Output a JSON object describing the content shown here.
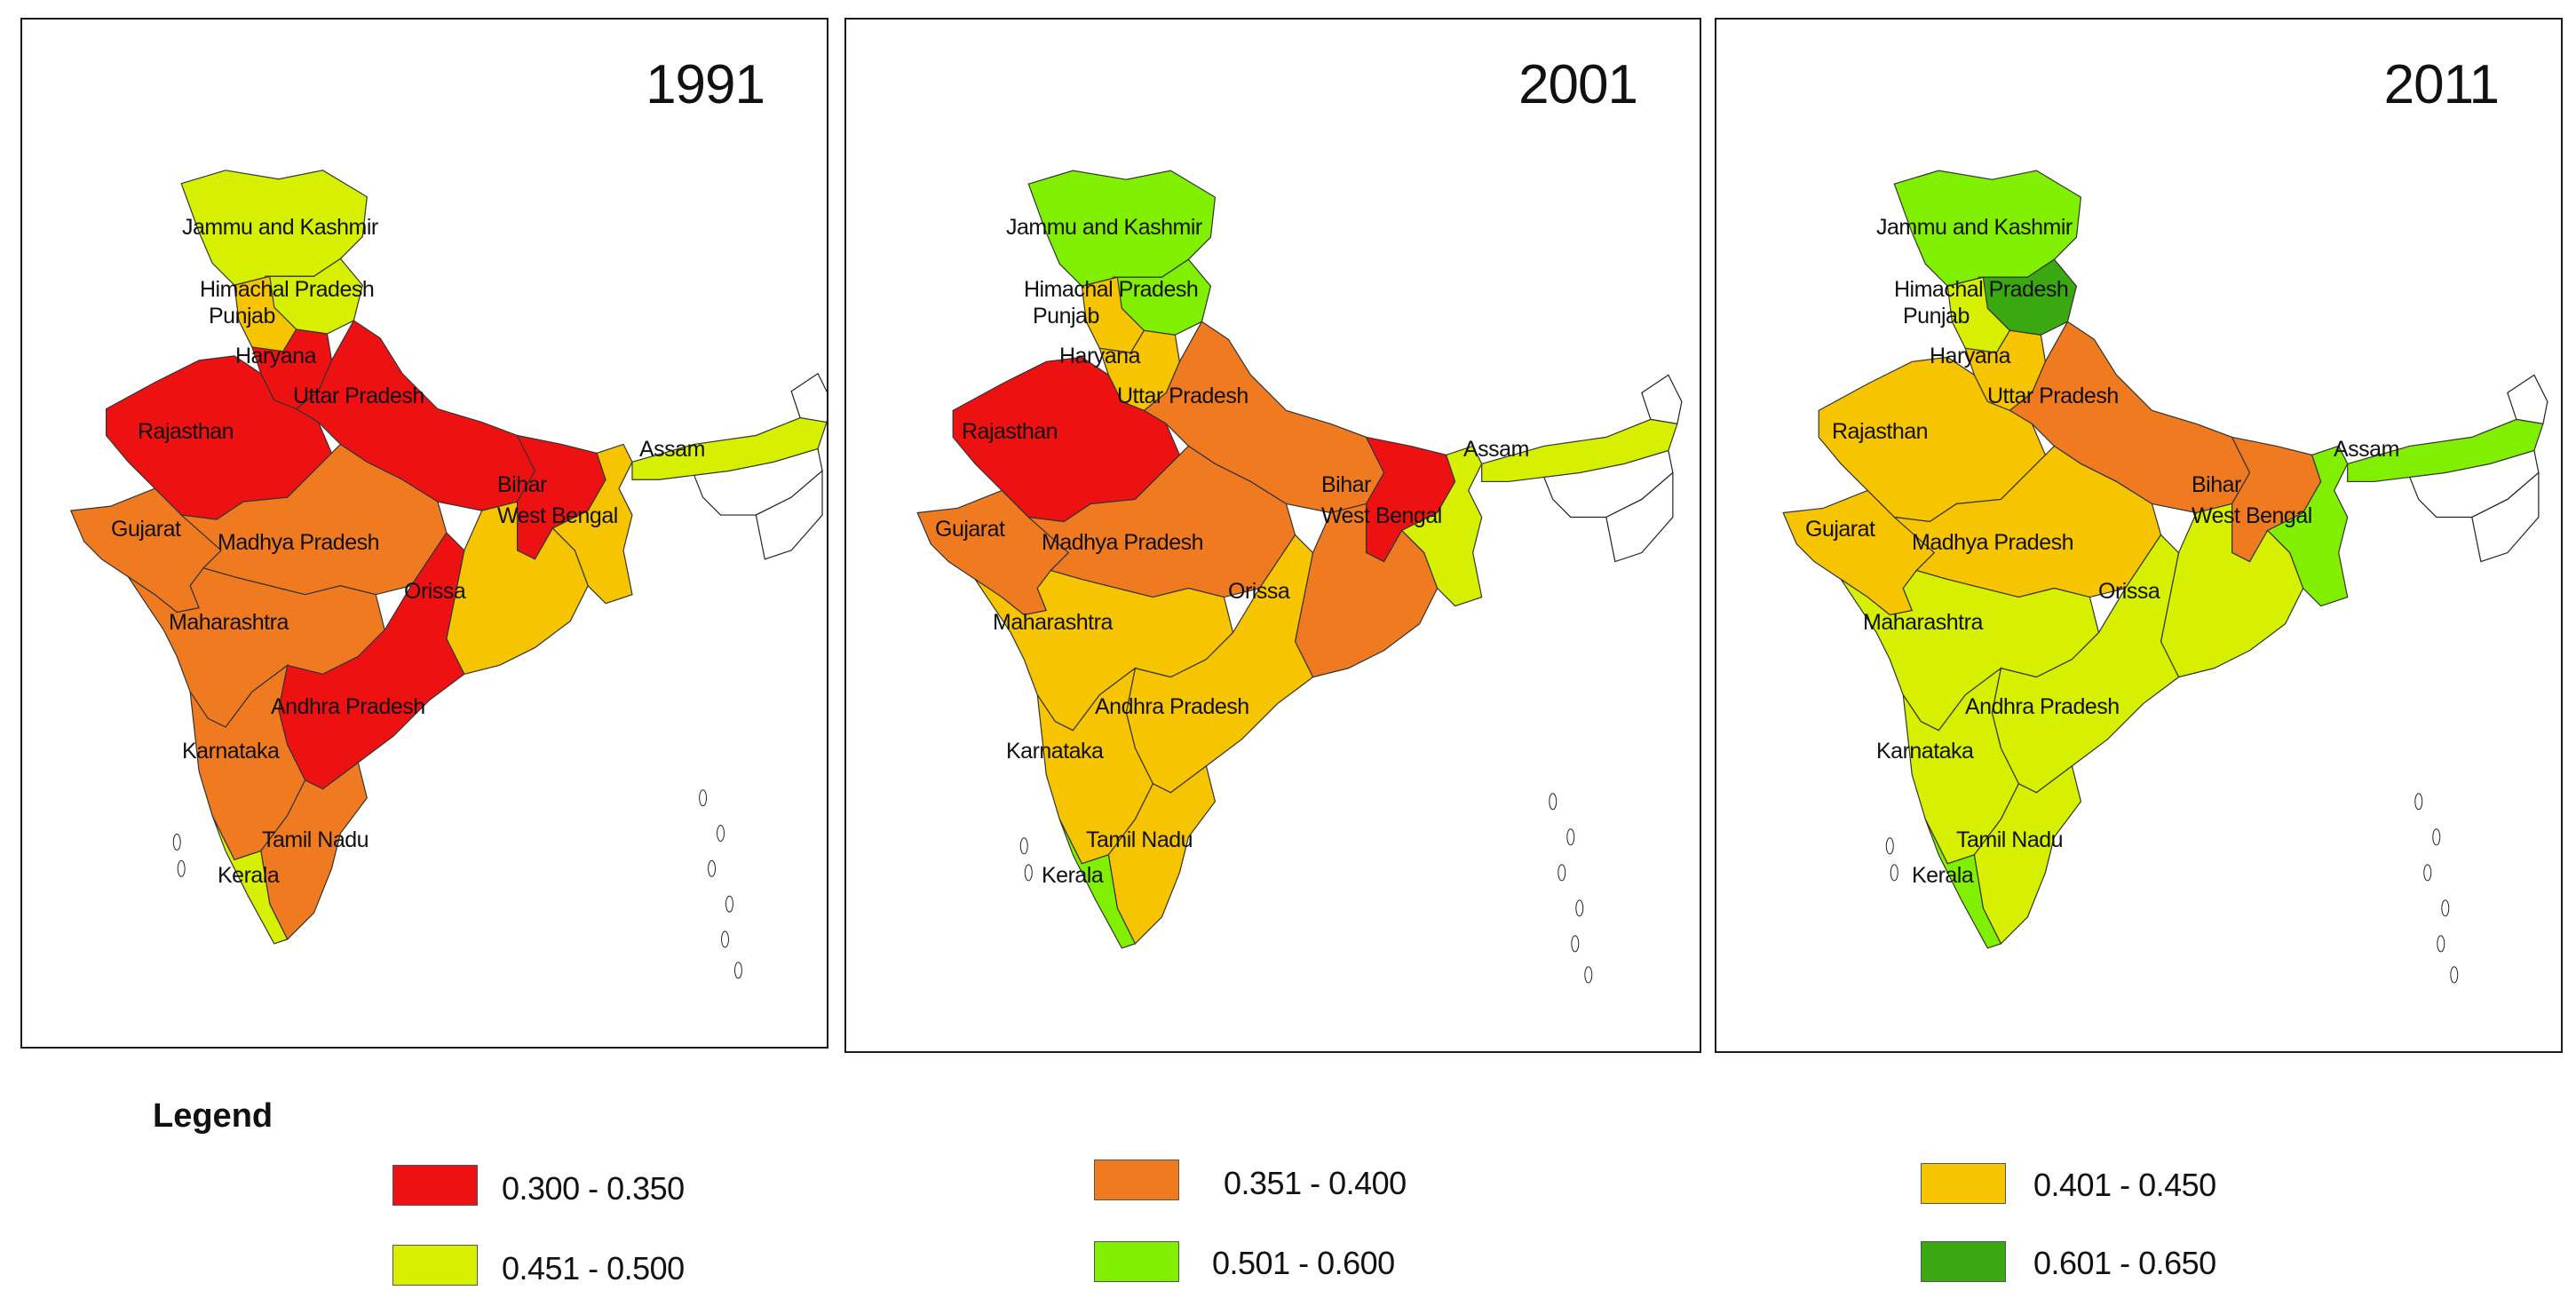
{
  "legend": {
    "title": "Legend",
    "classes": [
      {
        "range": "0.300 - 0.350",
        "color": "#ee1111"
      },
      {
        "range": "0.351 - 0.400",
        "color": "#f07a20"
      },
      {
        "range": "0.401 - 0.450",
        "color": "#f7c400"
      },
      {
        "range": "0.451 - 0.500",
        "color": "#d6f000"
      },
      {
        "range": "0.501 - 0.600",
        "color": "#80f000"
      },
      {
        "range": "0.601 - 0.650",
        "color": "#3aa810"
      }
    ]
  },
  "maps": [
    {
      "year": "1991",
      "regions": {
        "jk": "#d6f000",
        "hp": "#d6f000",
        "pb": "#f7c400",
        "hr": "#ee1111",
        "up": "#ee1111",
        "rj": "#ee1111",
        "bh": "#ee1111",
        "wb": "#f7c400",
        "as": "#d6f000",
        "gj": "#f07a20",
        "mp": "#f07a20",
        "or": "#f7c400",
        "mh": "#f07a20",
        "ap": "#ee1111",
        "ka": "#f07a20",
        "tn": "#f07a20",
        "kl": "#d6f000"
      },
      "labels": {
        "jk": "Jammu and Kashmir",
        "hp": "Himachal Pradesh",
        "pb": "Punjab",
        "hr": "Haryana",
        "up": "Uttar Pradesh",
        "rj": "Rajasthan",
        "as": "Assam",
        "bh": "Bihar",
        "wb": "West Bengal",
        "gj": "Gujarat",
        "mp": "Madhya Pradesh",
        "or": "Orissa",
        "mh": "Maharashtra",
        "ap": "Andhra Pradesh",
        "ka": "Karnataka",
        "tn": "Tamil Nadu",
        "kl": "Kerala"
      }
    },
    {
      "year": "2001",
      "regions": {
        "jk": "#80f000",
        "hp": "#80f000",
        "pb": "#f7c400",
        "hr": "#f7c400",
        "up": "#f07a20",
        "rj": "#ee1111",
        "bh": "#ee1111",
        "wb": "#d6f000",
        "as": "#d6f000",
        "gj": "#f07a20",
        "mp": "#f07a20",
        "or": "#f07a20",
        "mh": "#f7c400",
        "ap": "#f7c400",
        "ka": "#f7c400",
        "tn": "#f7c400",
        "kl": "#80f000"
      },
      "labels": {
        "jk": "Jammu and Kashmir",
        "hp": "Himachal Pradesh",
        "pb": "Punjab",
        "hr": "Haryana",
        "up": "Uttar Pradesh",
        "rj": "Rajasthan",
        "as": "Assam",
        "bh": "Bihar",
        "wb": "West Bengal",
        "gj": "Gujarat",
        "mp": "Madhya Pradesh",
        "or": "Orissa",
        "mh": "Maharashtra",
        "ap": "Andhra Pradesh",
        "ka": "Karnataka",
        "tn": "Tamil Nadu",
        "kl": "Kerala"
      }
    },
    {
      "year": "2011",
      "regions": {
        "jk": "#80f000",
        "hp": "#3aa810",
        "pb": "#d6f000",
        "hr": "#f7c400",
        "up": "#f07a20",
        "rj": "#f7c400",
        "bh": "#f07a20",
        "wb": "#80f000",
        "as": "#80f000",
        "gj": "#f7c400",
        "mp": "#f7c400",
        "or": "#d6f000",
        "mh": "#d6f000",
        "ap": "#d6f000",
        "ka": "#d6f000",
        "tn": "#d6f000",
        "kl": "#80f000"
      },
      "labels": {
        "jk": "Jammu and Kashmir",
        "hp": "Himachal Pradesh",
        "pb": "Punjab",
        "hr": "Haryana",
        "up": "Uttar Pradesh",
        "rj": "Rajasthan",
        "as": "Assam",
        "bh": "Bihar",
        "wb": "West Bengal",
        "gj": "Gujarat",
        "mp": "Madhya Pradesh",
        "or": "Orissa",
        "mh": "Maharashtra",
        "ap": "Andhra Pradesh",
        "ka": "Karnataka",
        "tn": "Tamil Nadu",
        "kl": "Kerala"
      }
    }
  ]
}
